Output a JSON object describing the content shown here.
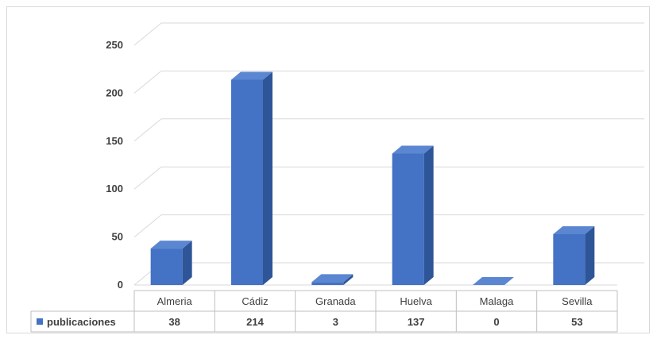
{
  "chart_data": {
    "type": "bar",
    "title": "",
    "xlabel": "",
    "ylabel": "",
    "categories": [
      "Almeria",
      "Cádiz",
      "Granada",
      "Huelva",
      "Malaga",
      "Sevilla"
    ],
    "series": [
      {
        "name": "publicaciones",
        "values": [
          38,
          214,
          3,
          137,
          0,
          53
        ],
        "value_labels": [
          "38",
          "214",
          "3",
          "137",
          "0",
          "53"
        ]
      }
    ],
    "yticks": [
      "0",
      "50",
      "100",
      "150",
      "200",
      "250"
    ],
    "ylim": [
      0,
      250
    ],
    "grid": true,
    "three_d": true,
    "data_table": true,
    "legend_position": "data-table-left",
    "colors": {
      "bar_front": "#4472c4",
      "bar_side": "#2e5597",
      "bar_top": "#5b86d1",
      "grid": "#d9d9d9",
      "text": "#404040"
    }
  }
}
